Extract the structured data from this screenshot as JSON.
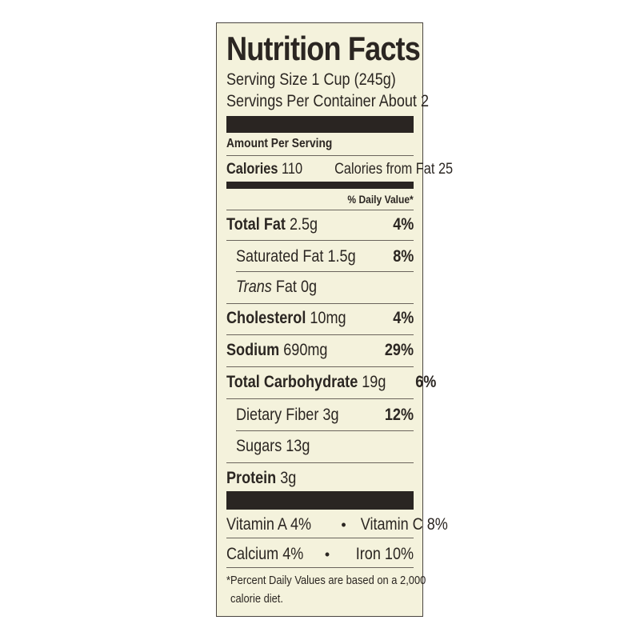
{
  "title": "Nutrition Facts",
  "serving_size": "Serving Size 1 Cup (245g)",
  "servings_per_container": "Servings Per Container About 2",
  "amount_per_serving": "Amount Per Serving",
  "calories": {
    "label": "Calories",
    "value": "110",
    "from_fat": "Calories from Fat 25"
  },
  "daily_value_header": "% Daily Value*",
  "nutrients": [
    {
      "label": "Total Fat",
      "amount": "2.5g",
      "dv": "4%"
    },
    {
      "label": "Saturated Fat",
      "amount": "1.5g",
      "dv": "8%"
    },
    {
      "label": "Trans",
      "label_rest": "Fat 0g",
      "dv": ""
    },
    {
      "label": "Cholesterol",
      "amount": "10mg",
      "dv": "4%"
    },
    {
      "label": "Sodium",
      "amount": "690mg",
      "dv": "29%"
    },
    {
      "label": "Total Carbohydrate",
      "amount": "19g",
      "dv": "6%"
    },
    {
      "label": "Dietary Fiber",
      "amount": "3g",
      "dv": "12%"
    },
    {
      "label": "Sugars",
      "amount": "13g",
      "dv": ""
    },
    {
      "label": "Protein",
      "amount": "3g",
      "dv": ""
    }
  ],
  "vitamins": [
    {
      "left": "Vitamin A 4%",
      "right": "Vitamin C 8%"
    },
    {
      "left": "Calcium 4%",
      "right": "Iron 10%"
    }
  ],
  "bullet": "•",
  "footnote_line1": "*Percent Daily Values are based on a 2,000",
  "footnote_line2": "calorie diet.",
  "colors": {
    "background": "#f4f2dc",
    "ink": "#2a2522"
  }
}
